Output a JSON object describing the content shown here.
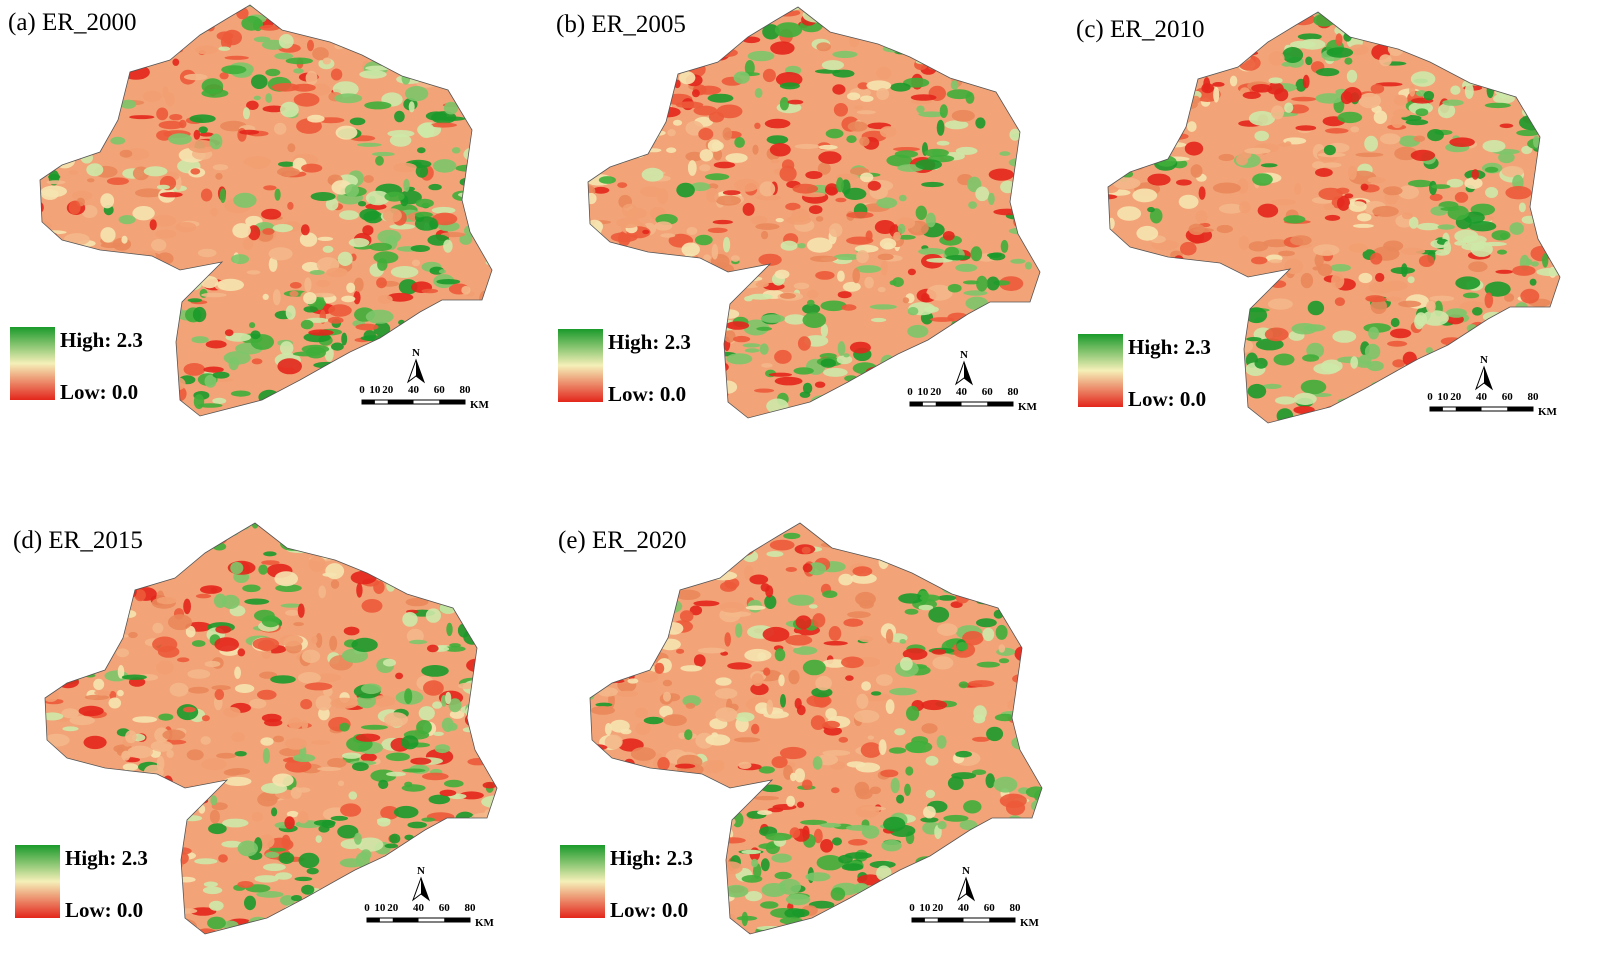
{
  "panels": [
    {
      "title": "(a) ER_2000",
      "legend": {
        "high": "High: 2.3",
        "low": "Low: 0.0"
      },
      "north": "N",
      "scale": {
        "ticks": [
          0,
          10,
          20,
          40,
          60,
          80
        ],
        "unit": "KM"
      }
    },
    {
      "title": "(b) ER_2005",
      "legend": {
        "high": "High: 2.3",
        "low": "Low: 0.0"
      },
      "north": "N",
      "scale": {
        "ticks": [
          0,
          10,
          20,
          40,
          60,
          80
        ],
        "unit": "KM"
      }
    },
    {
      "title": "(c) ER_2010",
      "legend": {
        "high": "High: 2.3",
        "low": "Low: 0.0"
      },
      "north": "N",
      "scale": {
        "ticks": [
          0,
          10,
          20,
          40,
          60,
          80
        ],
        "unit": "KM"
      }
    },
    {
      "title": "(d) ER_2015",
      "legend": {
        "high": "High: 2.3",
        "low": "Low: 0.0"
      },
      "north": "N",
      "scale": {
        "ticks": [
          0,
          10,
          20,
          40,
          60,
          80
        ],
        "unit": "KM"
      }
    },
    {
      "title": "(e) ER_2020",
      "legend": {
        "high": "High: 2.3",
        "low": "Low: 0.0"
      },
      "north": "N",
      "scale": {
        "ticks": [
          0,
          10,
          20,
          40,
          60,
          80
        ],
        "unit": "KM"
      }
    }
  ]
}
